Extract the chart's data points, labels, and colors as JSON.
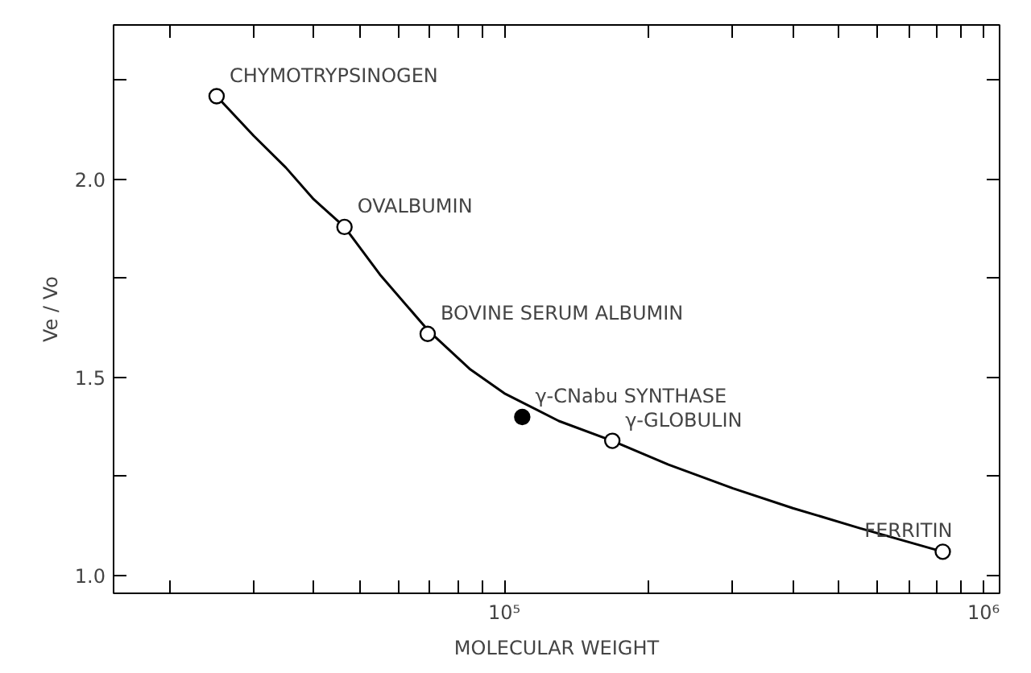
{
  "chart_data": {
    "type": "scatter",
    "xlabel": "MOLECULAR WEIGHT",
    "ylabel": "Ve / Vo",
    "log": "x",
    "grid": false,
    "xlim": [
      15300,
      1080000
    ],
    "xticks": [
      {
        "value": 20000,
        "label": null
      },
      {
        "value": 30000,
        "label": null
      },
      {
        "value": 40000,
        "label": null
      },
      {
        "value": 50000,
        "label": null
      },
      {
        "value": 60000,
        "label": null
      },
      {
        "value": 70000,
        "label": null
      },
      {
        "value": 80000,
        "label": null
      },
      {
        "value": 90000,
        "label": null
      },
      {
        "value": 100000,
        "label": "10⁵"
      },
      {
        "value": 200000,
        "label": null
      },
      {
        "value": 300000,
        "label": null
      },
      {
        "value": 400000,
        "label": null
      },
      {
        "value": 500000,
        "label": null
      },
      {
        "value": 600000,
        "label": null
      },
      {
        "value": 700000,
        "label": null
      },
      {
        "value": 800000,
        "label": null
      },
      {
        "value": 900000,
        "label": null
      },
      {
        "value": 1000000,
        "label": "10⁶"
      }
    ],
    "ylim": [
      0.955,
      2.39
    ],
    "yticks": [
      {
        "value": 1.0,
        "label": "1.0"
      },
      {
        "value": 1.25,
        "label": null
      },
      {
        "value": 1.5,
        "label": "1.5"
      },
      {
        "value": 1.75,
        "label": null
      },
      {
        "value": 2.0,
        "label": "2.0"
      },
      {
        "value": 2.25,
        "label": null
      }
    ],
    "series": [
      {
        "type": "line",
        "color": "#000000",
        "line_style": "solid",
        "x": [
          25100,
          30000,
          35000,
          40000,
          46400,
          55000,
          69200,
          85000,
          100000,
          130000,
          168000,
          220000,
          300000,
          400000,
          550000,
          822000
        ],
        "values": [
          2.21,
          2.11,
          2.03,
          1.95,
          1.88,
          1.76,
          1.62,
          1.52,
          1.46,
          1.39,
          1.34,
          1.28,
          1.22,
          1.17,
          1.12,
          1.06
        ]
      },
      {
        "marker": "circle",
        "color": "#000000",
        "colors": [
          "#ffffff",
          "#ffffff",
          "#ffffff",
          "#000000",
          "#ffffff",
          "#ffffff"
        ],
        "x": [
          25100,
          46400,
          69200,
          109000,
          168000,
          822000
        ],
        "values": [
          2.21,
          1.88,
          1.61,
          1.4,
          1.34,
          1.06
        ]
      }
    ],
    "annotations": [
      {
        "text": "CHYMOTRYPSINOGEN",
        "x": 25100,
        "y": 2.21
      },
      {
        "text": "OVALBUMIN",
        "x": 46400,
        "y": 1.88
      },
      {
        "text": "BOVINE SERUM ALBUMIN",
        "x": 69200,
        "y": 1.61
      },
      {
        "text": "γ-CNabu SYNTHASE",
        "x": 109000,
        "y": 1.4
      },
      {
        "text": "γ-GLOBULIN",
        "x": 168000,
        "y": 1.34
      },
      {
        "text": "FERRITIN",
        "x": 822000,
        "y": 1.06
      }
    ]
  }
}
